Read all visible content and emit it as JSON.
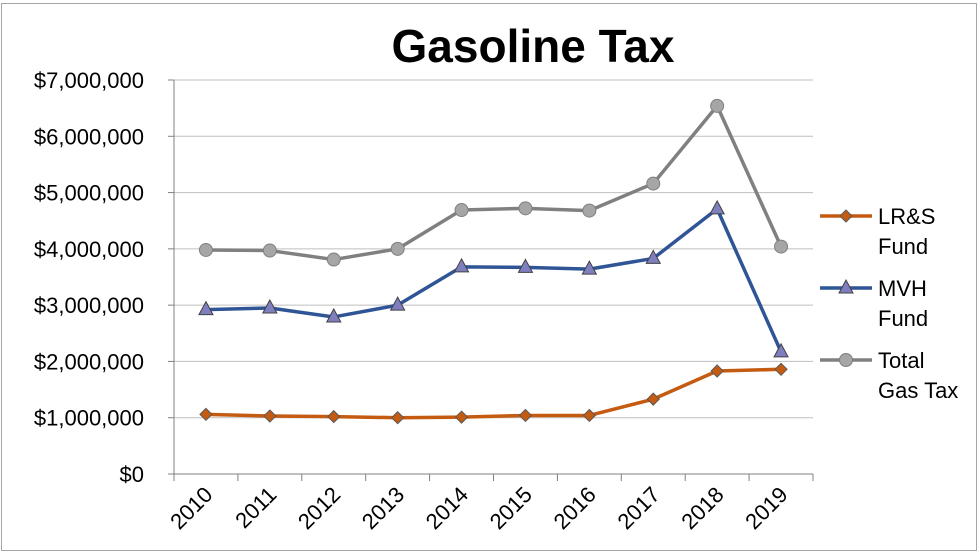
{
  "chart_data": {
    "type": "line",
    "title": "Gasoline Tax",
    "xlabel": "",
    "ylabel": "",
    "categories": [
      "2010",
      "2011",
      "2012",
      "2013",
      "2014",
      "2015",
      "2016",
      "2017",
      "2018",
      "2019"
    ],
    "ylim": [
      0,
      7000000
    ],
    "yticks": [
      0,
      1000000,
      2000000,
      3000000,
      4000000,
      5000000,
      6000000,
      7000000
    ],
    "ytick_labels": [
      "$0",
      "$1,000,000",
      "$2,000,000",
      "$3,000,000",
      "$4,000,000",
      "$5,000,000",
      "$6,000,000",
      "$7,000,000"
    ],
    "grid": true,
    "legend_position": "right",
    "series": [
      {
        "name": "LR&S Fund",
        "legend_lines": [
          "LR&S",
          "Fund"
        ],
        "color": "#c55a11",
        "marker": "diamond",
        "values": [
          1060000,
          1030000,
          1020000,
          1000000,
          1010000,
          1040000,
          1040000,
          1330000,
          1830000,
          1860000
        ]
      },
      {
        "name": "MVH Fund",
        "legend_lines": [
          "MVH",
          "Fund"
        ],
        "color": "#2f5597",
        "marker": "triangle",
        "values": [
          2920000,
          2950000,
          2790000,
          3000000,
          3680000,
          3670000,
          3640000,
          3830000,
          4710000,
          2170000
        ]
      },
      {
        "name": "Total Gas Tax",
        "legend_lines": [
          "Total",
          "Gas Tax"
        ],
        "color": "#808080",
        "marker": "circle",
        "values": [
          3980000,
          3970000,
          3810000,
          4000000,
          4690000,
          4720000,
          4680000,
          5160000,
          6540000,
          4040000
        ]
      }
    ]
  }
}
